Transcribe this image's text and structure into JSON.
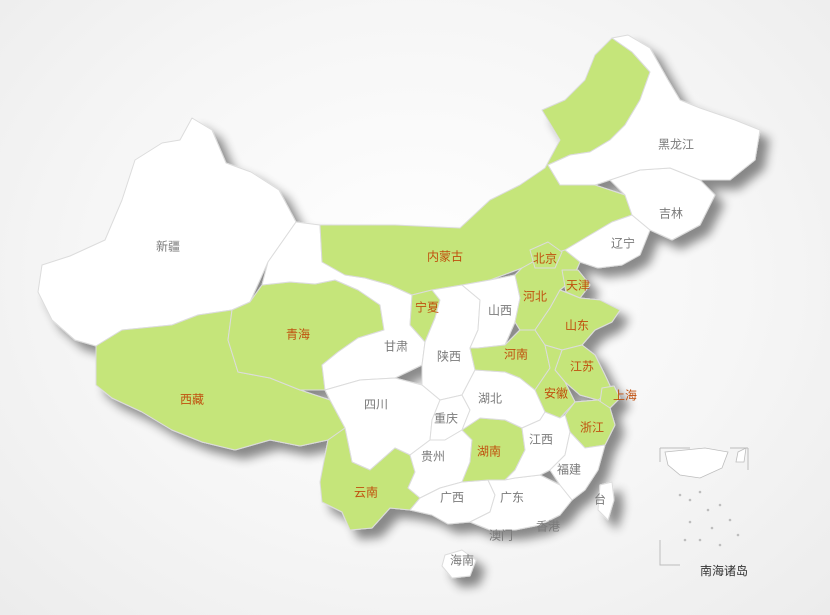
{
  "colors": {
    "highlight_fill": "#c5e57a",
    "highlight_text": "#c0500e",
    "default_fill": "#ffffff",
    "default_text": "#7a7a7a",
    "border": "#d6d6d6"
  },
  "inset": {
    "label": "南海诸岛"
  },
  "provinces": [
    {
      "id": "xinjiang",
      "name": "新疆",
      "highlighted": false
    },
    {
      "id": "xizang",
      "name": "西藏",
      "highlighted": true
    },
    {
      "id": "qinghai",
      "name": "青海",
      "highlighted": true
    },
    {
      "id": "gansu",
      "name": "甘肃",
      "highlighted": false
    },
    {
      "id": "neimenggu",
      "name": "内蒙古",
      "highlighted": true
    },
    {
      "id": "ningxia",
      "name": "宁夏",
      "highlighted": true
    },
    {
      "id": "shaanxi",
      "name": "陕西",
      "highlighted": false
    },
    {
      "id": "shanxi",
      "name": "山西",
      "highlighted": false
    },
    {
      "id": "sichuan",
      "name": "四川",
      "highlighted": false
    },
    {
      "id": "chongqing",
      "name": "重庆",
      "highlighted": false
    },
    {
      "id": "yunnan",
      "name": "云南",
      "highlighted": true
    },
    {
      "id": "guizhou",
      "name": "贵州",
      "highlighted": false
    },
    {
      "id": "guangxi",
      "name": "广西",
      "highlighted": false
    },
    {
      "id": "guangdong",
      "name": "广东",
      "highlighted": false
    },
    {
      "id": "hainan",
      "name": "海南",
      "highlighted": false
    },
    {
      "id": "hunan",
      "name": "湖南",
      "highlighted": true
    },
    {
      "id": "hubei",
      "name": "湖北",
      "highlighted": false
    },
    {
      "id": "henan",
      "name": "河南",
      "highlighted": true
    },
    {
      "id": "hebei",
      "name": "河北",
      "highlighted": true
    },
    {
      "id": "beijing",
      "name": "北京",
      "highlighted": true
    },
    {
      "id": "tianjin",
      "name": "天津",
      "highlighted": true
    },
    {
      "id": "shandong",
      "name": "山东",
      "highlighted": true
    },
    {
      "id": "jiangsu",
      "name": "江苏",
      "highlighted": true
    },
    {
      "id": "anhui",
      "name": "安徽",
      "highlighted": true
    },
    {
      "id": "shanghai",
      "name": "上海",
      "highlighted": true
    },
    {
      "id": "zhejiang",
      "name": "浙江",
      "highlighted": true
    },
    {
      "id": "jiangxi",
      "name": "江西",
      "highlighted": false
    },
    {
      "id": "fujian",
      "name": "福建",
      "highlighted": false
    },
    {
      "id": "taiwan",
      "name": "台",
      "highlighted": false
    },
    {
      "id": "xianggang",
      "name": "香港",
      "highlighted": false
    },
    {
      "id": "aomen",
      "name": "澳门",
      "highlighted": false
    },
    {
      "id": "liaoning",
      "name": "辽宁",
      "highlighted": false
    },
    {
      "id": "jilin",
      "name": "吉林",
      "highlighted": false
    },
    {
      "id": "heilongjiang",
      "name": "黑龙江",
      "highlighted": false
    }
  ]
}
